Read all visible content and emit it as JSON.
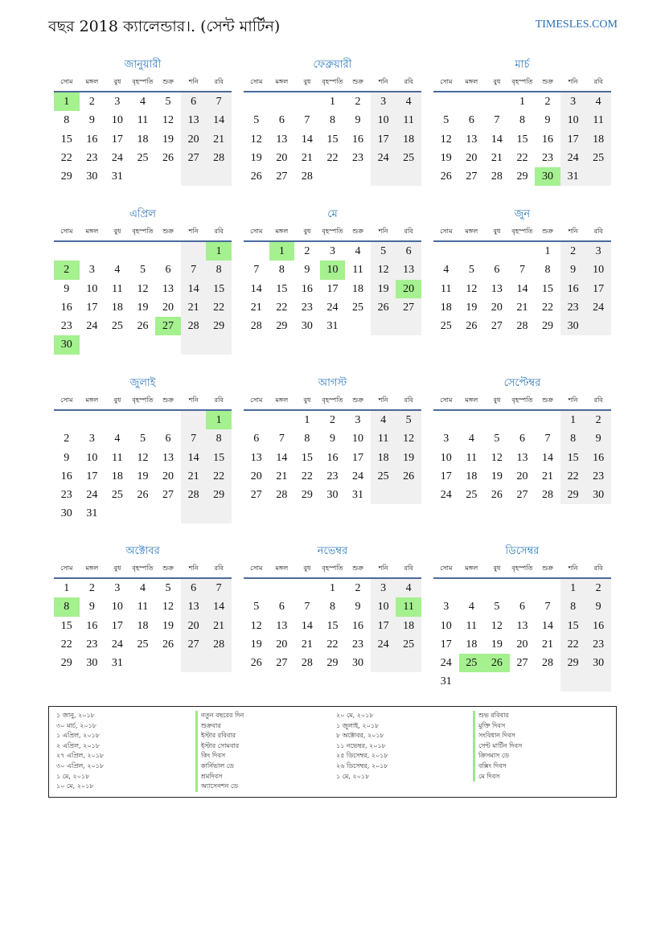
{
  "header": {
    "title": "বছর 2018 ক্যালেন্ডার।. (সেন্ট মার্টিন)",
    "site": "TIMESLES.COM"
  },
  "weekdays": [
    "সোম",
    "মঙ্গল",
    "বুধ",
    "বৃহস্পতি",
    "শুক্র",
    "শনি",
    "রবি"
  ],
  "colors": {
    "holiday": "#a5f08f",
    "weekend": "#f0f0f0",
    "accent": "#2f7ac0"
  },
  "months": [
    {
      "name": "জানুয়ারী",
      "start_weekday": 0,
      "days": 31,
      "holidays": [
        1
      ]
    },
    {
      "name": "ফেব্রুয়ারী",
      "start_weekday": 3,
      "days": 28,
      "holidays": []
    },
    {
      "name": "মার্চ",
      "start_weekday": 3,
      "days": 31,
      "holidays": [
        30
      ]
    },
    {
      "name": "এপ্রিল",
      "start_weekday": 6,
      "days": 30,
      "holidays": [
        1,
        2,
        27,
        30
      ]
    },
    {
      "name": "মে",
      "start_weekday": 1,
      "days": 31,
      "holidays": [
        1,
        10,
        20
      ]
    },
    {
      "name": "জুন",
      "start_weekday": 4,
      "days": 30,
      "holidays": []
    },
    {
      "name": "জুলাই",
      "start_weekday": 6,
      "days": 31,
      "holidays": [
        1
      ]
    },
    {
      "name": "আগস্ট",
      "start_weekday": 2,
      "days": 31,
      "holidays": []
    },
    {
      "name": "সেপ্টেম্বর",
      "start_weekday": 5,
      "days": 30,
      "holidays": []
    },
    {
      "name": "অক্টোবর",
      "start_weekday": 0,
      "days": 31,
      "holidays": [
        8
      ]
    },
    {
      "name": "নভেম্বর",
      "start_weekday": 3,
      "days": 30,
      "holidays": [
        11
      ]
    },
    {
      "name": "ডিসেম্বর",
      "start_weekday": 5,
      "days": 31,
      "holidays": [
        25,
        26
      ]
    }
  ],
  "holiday_list": [
    [
      {
        "date": "১ জানু, ২০১৮",
        "name": "নতুন বছরের দিন"
      },
      {
        "date": "৩০ মার্চ, ২০১৮",
        "name": "শুক্রবার"
      },
      {
        "date": "১ এপ্রিল, ২০১৮",
        "name": "ইস্টার রবিবার"
      },
      {
        "date": "২ এপ্রিল, ২০১৮",
        "name": "ইস্টার সোমবার"
      },
      {
        "date": "২৭ এপ্রিল, ২০১৮",
        "name": "কিং দিবস"
      },
      {
        "date": "৩০ এপ্রিল, ২০১৮",
        "name": "কার্নিভাল ডে"
      },
      {
        "date": "১ মে, ২০১৮",
        "name": "শ্রমদিবস"
      },
      {
        "date": "১০ মে, ২০১৮",
        "name": "অ্যাসেনশন ডে"
      }
    ],
    [
      {
        "date": "২০ মে, ২০১৮",
        "name": "শুভ রবিবার"
      },
      {
        "date": "১ জুলাই, ২০১৮",
        "name": "মুক্তি দিবস"
      },
      {
        "date": "৮ অক্টোবর, ২০১৮",
        "name": "সংবিধান দিবস"
      },
      {
        "date": "১১ নভেম্বর, ২০১৮",
        "name": "সেন্ট মার্টিন দিবস"
      },
      {
        "date": "২৫ ডিসেম্বর, ২০১৮",
        "name": "ক্রিসমাস ডে"
      },
      {
        "date": "২৬ ডিসেম্বর, ২০১৮",
        "name": "বক্সিং দিবস"
      },
      {
        "date": "১ মে, ২০১৮",
        "name": "মে দিবস"
      }
    ]
  ]
}
